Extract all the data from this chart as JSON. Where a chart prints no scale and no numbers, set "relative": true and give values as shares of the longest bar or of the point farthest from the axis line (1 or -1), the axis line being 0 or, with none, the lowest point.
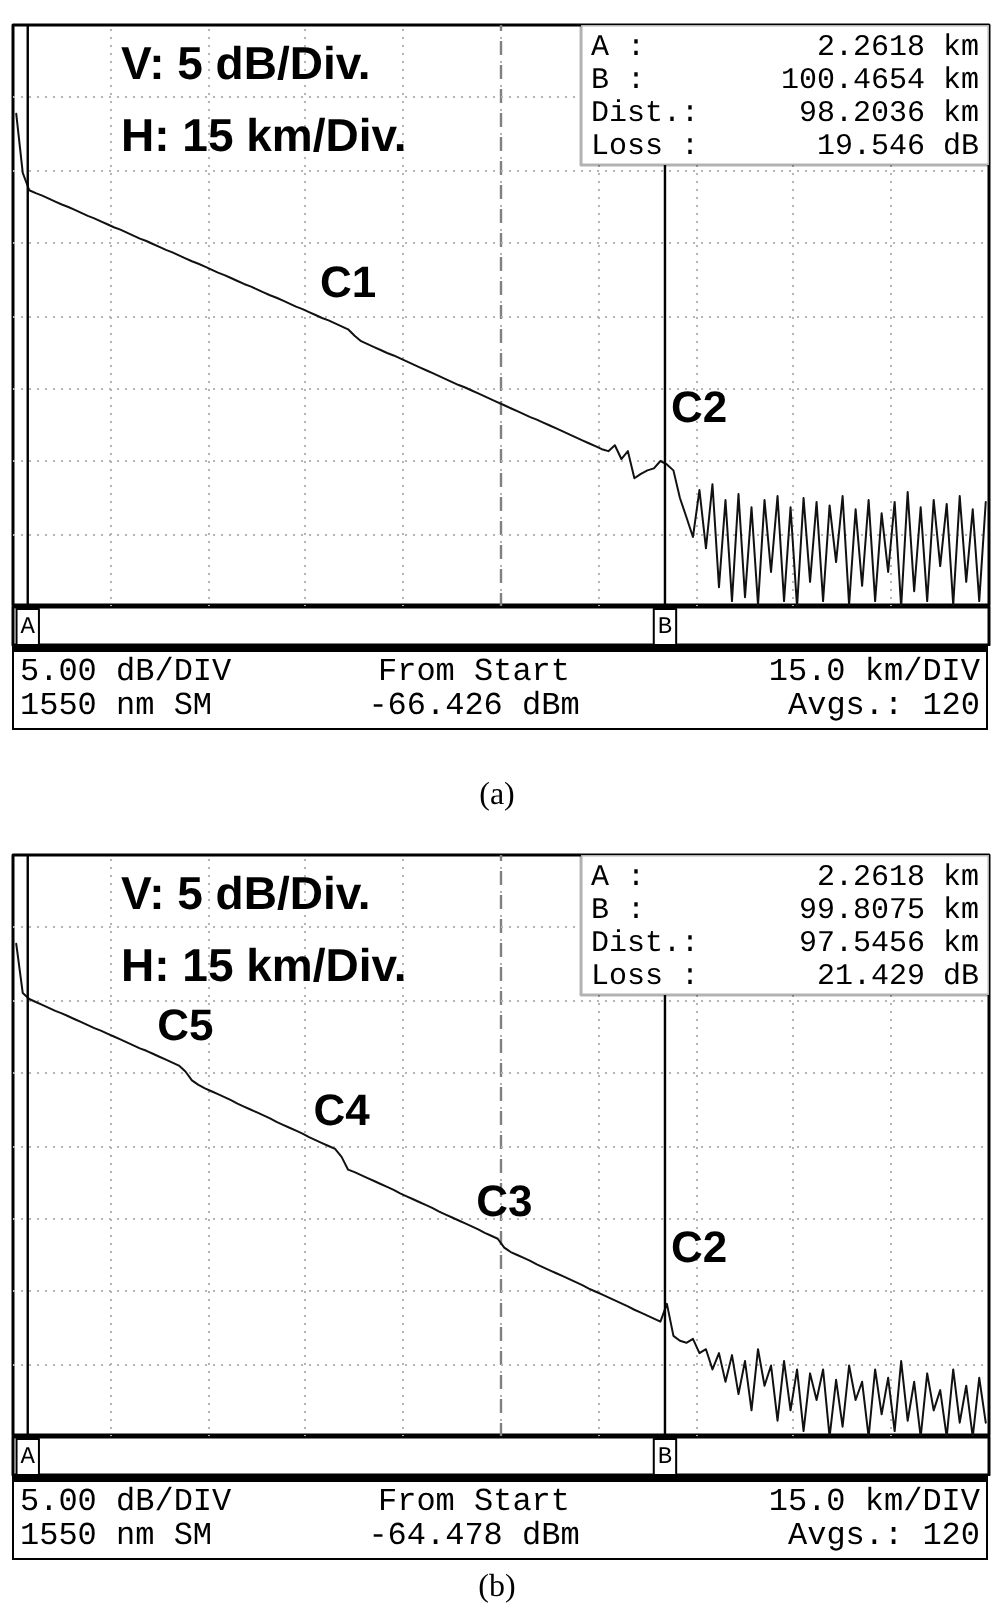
{
  "chart_data": [
    {
      "type": "line",
      "relative": true,
      "color": "#111111",
      "tick_labels": false,
      "grid": true,
      "categories": [
        null,
        null,
        null,
        null,
        null,
        null,
        null,
        null,
        null,
        null,
        null,
        null,
        null,
        null,
        null,
        null,
        null,
        null,
        null,
        null,
        null,
        null,
        null,
        null,
        null,
        null,
        null,
        null,
        null,
        null,
        null,
        null,
        null,
        null,
        null,
        null,
        null,
        null,
        null,
        null,
        null,
        null,
        null,
        null,
        null,
        null,
        null,
        null,
        null,
        null,
        null,
        null,
        null,
        null,
        null,
        null,
        null,
        null,
        null,
        null,
        null,
        null,
        null,
        null,
        null,
        null,
        null,
        null,
        null,
        null,
        null,
        null,
        null,
        null,
        null,
        null,
        null,
        null,
        null,
        null,
        null,
        null,
        null,
        null,
        null,
        null,
        null,
        null,
        null,
        null,
        null,
        null,
        null,
        null,
        null,
        null,
        null,
        null,
        null,
        null,
        null,
        null,
        null,
        null,
        null,
        null,
        null,
        null,
        null,
        null,
        null,
        null,
        null,
        null,
        null,
        null,
        null,
        null,
        null,
        null,
        null,
        null,
        null,
        null,
        null,
        null,
        null,
        null,
        null,
        null,
        null,
        null,
        null,
        null,
        null,
        null,
        null,
        null,
        null,
        null,
        null,
        null,
        null,
        null,
        null,
        null,
        null,
        null,
        null,
        null
      ],
      "values": [
        1.0,
        0.88,
        0.845,
        0.839,
        0.834,
        0.828,
        0.822,
        0.816,
        0.811,
        0.805,
        0.799,
        0.793,
        0.788,
        0.782,
        0.776,
        0.77,
        0.765,
        0.759,
        0.753,
        0.747,
        0.742,
        0.736,
        0.73,
        0.724,
        0.719,
        0.713,
        0.707,
        0.701,
        0.696,
        0.69,
        0.684,
        0.678,
        0.673,
        0.667,
        0.661,
        0.655,
        0.65,
        0.644,
        0.638,
        0.632,
        0.627,
        0.621,
        0.615,
        0.609,
        0.604,
        0.598,
        0.592,
        0.586,
        0.581,
        0.575,
        0.569,
        0.563,
        0.55,
        0.539,
        0.533,
        0.527,
        0.521,
        0.515,
        0.51,
        0.504,
        0.498,
        0.492,
        0.486,
        0.48,
        0.474,
        0.468,
        0.462,
        0.456,
        0.45,
        0.445,
        0.439,
        0.433,
        0.427,
        0.421,
        0.415,
        0.409,
        0.403,
        0.397,
        0.391,
        0.385,
        0.38,
        0.374,
        0.368,
        0.362,
        0.356,
        0.35,
        0.344,
        0.338,
        0.332,
        0.326,
        0.32,
        0.316,
        0.328,
        0.3,
        0.316,
        0.261,
        0.27,
        0.277,
        0.281,
        0.296,
        0.289,
        0.277,
        0.221,
        0.182,
        0.142,
        0.237,
        0.119,
        0.249,
        0.04,
        0.217,
        0.012,
        0.229,
        0.02,
        0.202,
        0.004,
        0.217,
        0.071,
        0.225,
        0.012,
        0.202,
        0.0,
        0.221,
        0.051,
        0.213,
        0.012,
        0.206,
        0.091,
        0.225,
        0.004,
        0.198,
        0.043,
        0.217,
        0.012,
        0.19,
        0.071,
        0.213,
        0.0,
        0.233,
        0.032,
        0.202,
        0.012,
        0.217,
        0.083,
        0.209,
        0.004,
        0.225,
        0.051,
        0.198,
        0.012,
        0.213
      ],
      "annotations": [
        "V:  5 dB/Div.",
        "H: 15 km/Div.",
        "A :",
        "2.2618 km",
        "B :",
        "100.4654 km",
        "Dist.:",
        "98.2036 km",
        "Loss :",
        "19.546 dB",
        "5.00 dB/DIV",
        "From Start",
        "15.0 km/DIV",
        "1550 nm SM",
        "-66.426 dBm",
        "Avgs.: 120",
        "(a)",
        "A",
        "B",
        "C2",
        {
          "text": "C1",
          "y": 0.563
        }
      ]
    },
    {
      "type": "line",
      "relative": true,
      "color": "#111111",
      "tick_labels": false,
      "grid": true,
      "categories": [
        null,
        null,
        null,
        null,
        null,
        null,
        null,
        null,
        null,
        null,
        null,
        null,
        null,
        null,
        null,
        null,
        null,
        null,
        null,
        null,
        null,
        null,
        null,
        null,
        null,
        null,
        null,
        null,
        null,
        null,
        null,
        null,
        null,
        null,
        null,
        null,
        null,
        null,
        null,
        null,
        null,
        null,
        null,
        null,
        null,
        null,
        null,
        null,
        null,
        null,
        null,
        null,
        null,
        null,
        null,
        null,
        null,
        null,
        null,
        null,
        null,
        null,
        null,
        null,
        null,
        null,
        null,
        null,
        null,
        null,
        null,
        null,
        null,
        null,
        null,
        null,
        null,
        null,
        null,
        null,
        null,
        null,
        null,
        null,
        null,
        null,
        null,
        null,
        null,
        null,
        null,
        null,
        null,
        null,
        null,
        null,
        null,
        null,
        null,
        null,
        null,
        null,
        null,
        null,
        null,
        null,
        null,
        null,
        null,
        null,
        null,
        null,
        null,
        null,
        null,
        null,
        null,
        null,
        null,
        null,
        null,
        null,
        null,
        null,
        null,
        null,
        null,
        null,
        null,
        null,
        null,
        null,
        null,
        null,
        null,
        null,
        null,
        null,
        null,
        null,
        null,
        null,
        null,
        null,
        null,
        null,
        null,
        null,
        null,
        null
      ],
      "values": [
        1.0,
        0.9,
        0.888,
        0.882,
        0.876,
        0.87,
        0.864,
        0.859,
        0.853,
        0.847,
        0.841,
        0.835,
        0.829,
        0.824,
        0.818,
        0.812,
        0.806,
        0.8,
        0.794,
        0.788,
        0.783,
        0.777,
        0.771,
        0.765,
        0.759,
        0.753,
        0.741,
        0.723,
        0.714,
        0.707,
        0.701,
        0.695,
        0.689,
        0.683,
        0.676,
        0.67,
        0.664,
        0.658,
        0.652,
        0.646,
        0.639,
        0.633,
        0.627,
        0.621,
        0.615,
        0.608,
        0.602,
        0.596,
        0.59,
        0.584,
        0.568,
        0.542,
        0.537,
        0.531,
        0.525,
        0.519,
        0.513,
        0.507,
        0.501,
        0.494,
        0.488,
        0.482,
        0.476,
        0.47,
        0.464,
        0.457,
        0.451,
        0.445,
        0.439,
        0.433,
        0.427,
        0.421,
        0.414,
        0.408,
        0.402,
        0.384,
        0.375,
        0.369,
        0.363,
        0.357,
        0.35,
        0.344,
        0.338,
        0.332,
        0.326,
        0.32,
        0.314,
        0.308,
        0.301,
        0.295,
        0.289,
        0.283,
        0.277,
        0.271,
        0.265,
        0.258,
        0.252,
        0.246,
        0.24,
        0.234,
        0.27,
        0.205,
        0.195,
        0.191,
        0.199,
        0.17,
        0.178,
        0.137,
        0.17,
        0.112,
        0.166,
        0.087,
        0.154,
        0.054,
        0.178,
        0.104,
        0.145,
        0.033,
        0.154,
        0.054,
        0.137,
        0.012,
        0.129,
        0.075,
        0.137,
        0.0,
        0.116,
        0.021,
        0.145,
        0.075,
        0.112,
        0.0,
        0.137,
        0.046,
        0.12,
        0.012,
        0.154,
        0.033,
        0.112,
        0.0,
        0.129,
        0.054,
        0.095,
        0.0,
        0.137,
        0.029,
        0.104,
        0.0,
        0.12,
        0.029
      ],
      "annotations": [
        "V:  5 dB/Div.",
        "H: 15 km/Div.",
        "A :",
        "2.2618 km",
        "B :",
        "99.8075 km",
        "Dist.:",
        "97.5456 km",
        "Loss :",
        "21.429 dB",
        "5.00 dB/DIV",
        "From Start",
        "15.0 km/DIV",
        "1550 nm SM",
        "-64.478 dBm",
        "Avgs.: 120",
        "(b)",
        "A",
        "B",
        "C2",
        {
          "text": "C5",
          "y": 0.741
        },
        {
          "text": "C4",
          "y": 0.568
        },
        {
          "text": "C3",
          "y": 0.384
        }
      ]
    }
  ]
}
